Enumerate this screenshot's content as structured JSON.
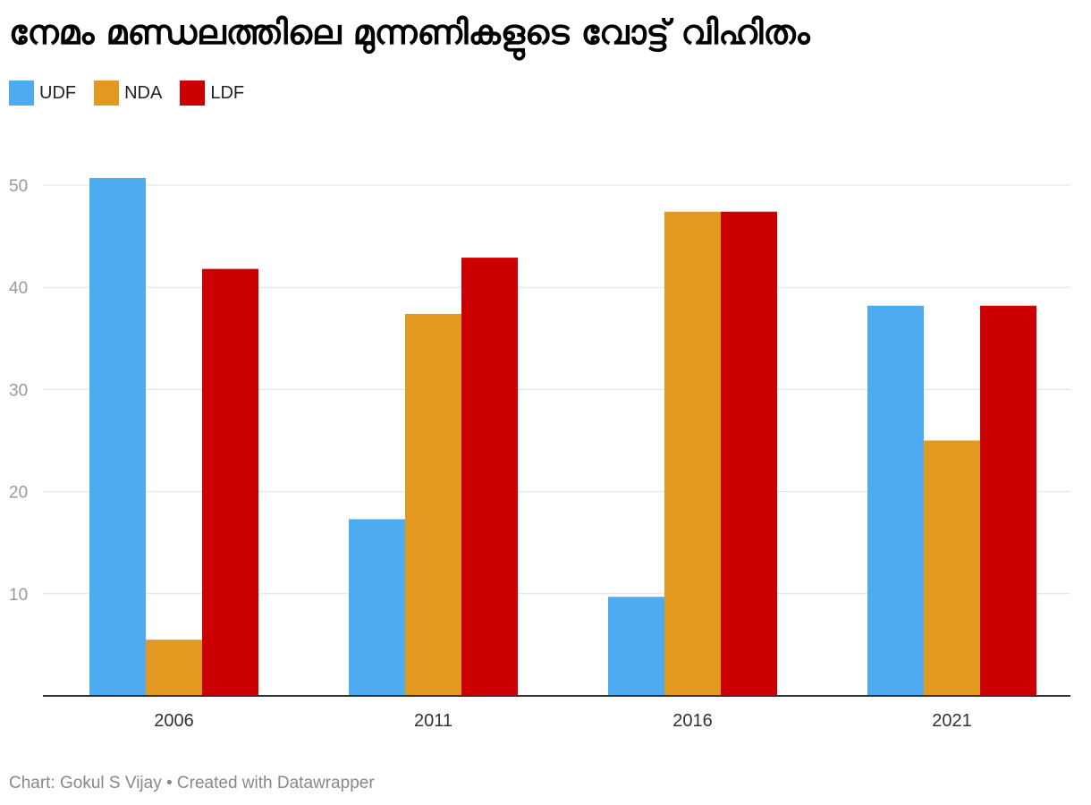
{
  "title": "നേമം മണ്ഡലത്തിലെ മുന്നണികളുടെ വോട്ട് വിഹിതം",
  "footer": "Chart: Gokul S Vijay • Created with Datawrapper",
  "chart_data": {
    "type": "bar",
    "title": "നേമം മണ്ഡലത്തിലെ മുന്നണികളുടെ വോട്ട് വിഹിതം",
    "categories": [
      "2006",
      "2011",
      "2016",
      "2021"
    ],
    "series": [
      {
        "name": "UDF",
        "color": "#4fabf0",
        "values": [
          50.7,
          17.3,
          9.7,
          38.2
        ]
      },
      {
        "name": "NDA",
        "color": "#e3991f",
        "values": [
          5.5,
          37.4,
          47.4,
          25.0
        ]
      },
      {
        "name": "LDF",
        "color": "#cc0000",
        "values": [
          41.8,
          42.9,
          47.4,
          38.2
        ]
      }
    ],
    "yticks": [
      10,
      20,
      30,
      40,
      50
    ],
    "ylim": [
      0,
      50
    ],
    "grid": true,
    "legend": "top-left"
  }
}
